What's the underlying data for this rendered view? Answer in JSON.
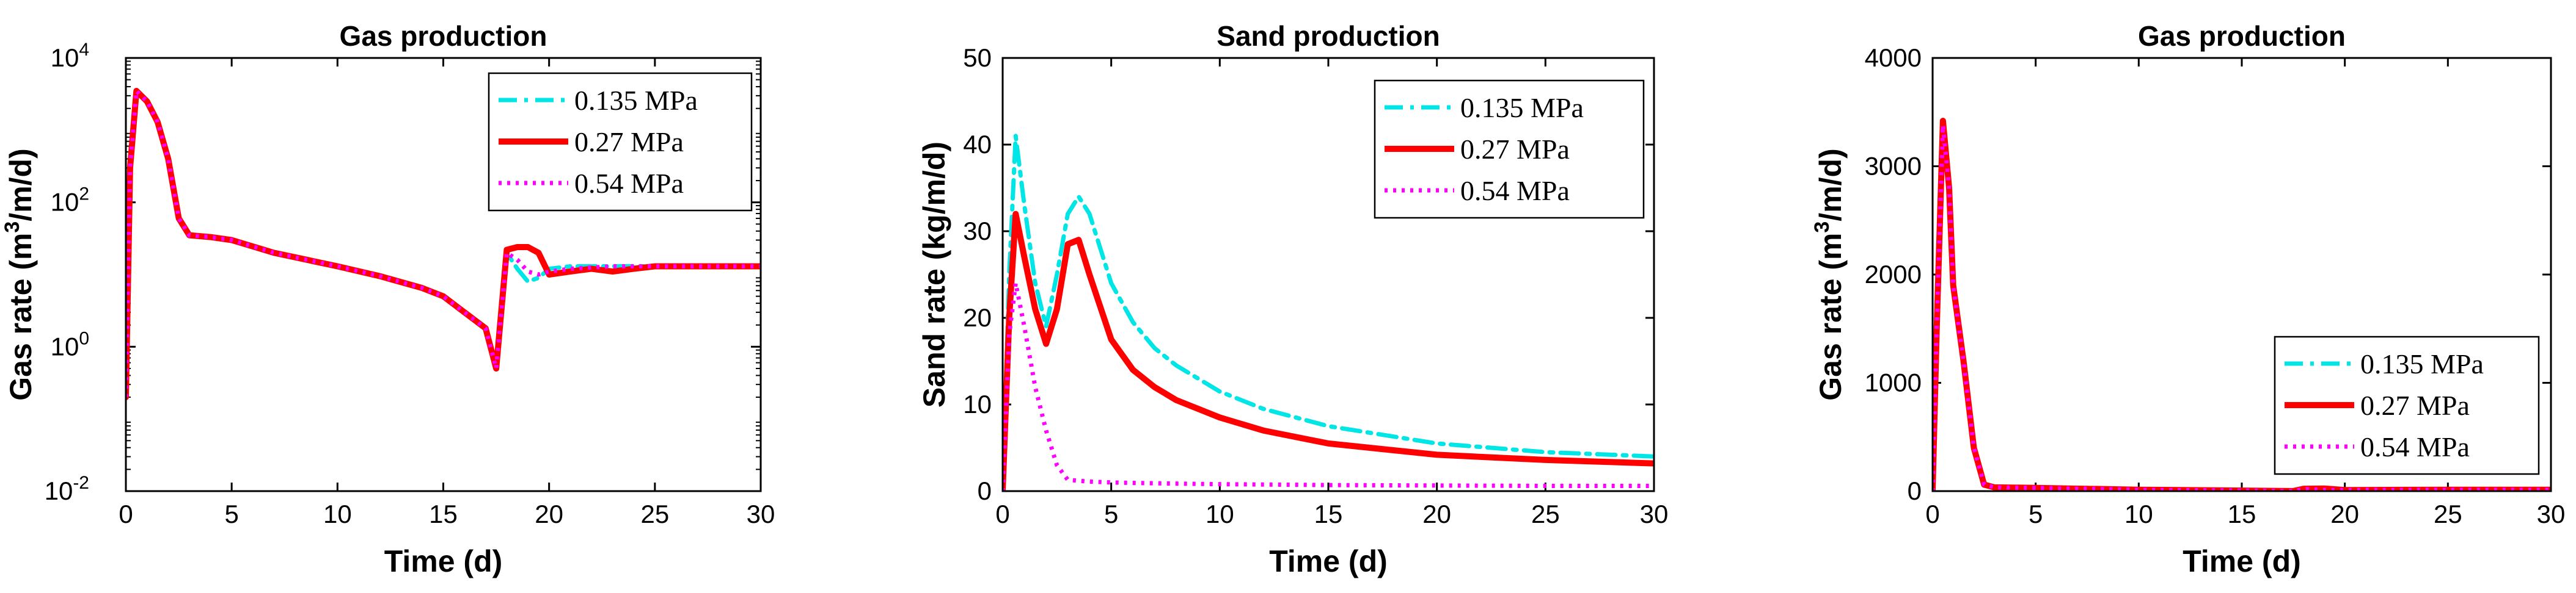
{
  "chart_data": [
    {
      "type": "line",
      "title": "Gas production",
      "xlabel": "Time (d)",
      "ylabel": "Gas rate (m³/m/d)",
      "yscale": "log",
      "xlim": [
        0,
        30
      ],
      "ylim": [
        0.01,
        10000
      ],
      "xticks": [
        "0",
        "5",
        "10",
        "15",
        "20",
        "25",
        "30"
      ],
      "yticks": [
        {
          "value": 0.01,
          "base": "10",
          "exp": "-2"
        },
        {
          "value": 1,
          "base": "10",
          "exp": "0"
        },
        {
          "value": 100,
          "base": "10",
          "exp": "2"
        },
        {
          "value": 10000,
          "base": "10",
          "exp": "4"
        }
      ],
      "legend": "top-right",
      "series": [
        {
          "name": "0.135 MPa",
          "color": "#00e5e5",
          "dash": "dashdot",
          "x": [
            0,
            0.2,
            0.5,
            1,
            1.5,
            2,
            2.5,
            3,
            4,
            5,
            7,
            10,
            12,
            14,
            15,
            16,
            17,
            17.5,
            18,
            18.5,
            19,
            19.5,
            20,
            21,
            22,
            23,
            24,
            25,
            27,
            30
          ],
          "y": [
            0.2,
            300,
            3500,
            2500,
            1300,
            400,
            60,
            35,
            33,
            30,
            20,
            13,
            9.5,
            6.5,
            5,
            3,
            1.8,
            0.5,
            20,
            12,
            8,
            9,
            12,
            13,
            13,
            13,
            13,
            13,
            13,
            13
          ]
        },
        {
          "name": "0.27 MPa",
          "color": "#ff0000",
          "dash": "solid",
          "x": [
            0,
            0.2,
            0.5,
            1,
            1.5,
            2,
            2.5,
            3,
            4,
            5,
            7,
            10,
            12,
            14,
            15,
            16,
            17,
            17.5,
            18,
            18.5,
            19,
            19.5,
            20,
            21,
            22,
            23,
            24,
            25,
            27,
            30
          ],
          "y": [
            0.2,
            300,
            3500,
            2500,
            1300,
            400,
            60,
            35,
            33,
            30,
            20,
            13,
            9.5,
            6.5,
            5,
            3,
            1.8,
            0.5,
            22,
            24,
            24,
            20,
            10,
            11,
            12,
            11,
            12,
            13,
            13,
            13
          ]
        },
        {
          "name": "0.54 MPa",
          "color": "#ff00ff",
          "dash": "dotted",
          "x": [
            0,
            0.2,
            0.5,
            1,
            1.5,
            2,
            2.5,
            3,
            4,
            5,
            7,
            10,
            12,
            14,
            15,
            16,
            17,
            17.5,
            18,
            18.5,
            19,
            19.5,
            20,
            21,
            22,
            23,
            24,
            25,
            27,
            30
          ],
          "y": [
            0.2,
            300,
            3500,
            2500,
            1300,
            400,
            60,
            35,
            33,
            30,
            20,
            13,
            9.5,
            6.5,
            5,
            3,
            1.8,
            0.5,
            20,
            16,
            11,
            10,
            11,
            12,
            12.5,
            13,
            13,
            13,
            13,
            13
          ]
        }
      ]
    },
    {
      "type": "line",
      "title": "Sand production",
      "xlabel": "Time (d)",
      "ylabel": "Sand rate (kg/m/d)",
      "yscale": "linear",
      "xlim": [
        0,
        30
      ],
      "ylim": [
        0,
        50
      ],
      "xticks": [
        "0",
        "5",
        "10",
        "15",
        "20",
        "25",
        "30"
      ],
      "yticks": [
        "0",
        "10",
        "20",
        "30",
        "40",
        "50"
      ],
      "legend": "top-right",
      "series": [
        {
          "name": "0.135 MPa",
          "color": "#00e5e5",
          "dash": "dashdot",
          "x": [
            0,
            0.3,
            0.6,
            1,
            1.5,
            2,
            2.5,
            3,
            3.5,
            4,
            5,
            6,
            7,
            8,
            10,
            12,
            15,
            20,
            25,
            30
          ],
          "y": [
            0,
            25,
            41,
            33,
            24,
            19,
            25,
            32,
            34,
            32,
            24,
            19.5,
            16.5,
            14.5,
            11.5,
            9.5,
            7.5,
            5.5,
            4.5,
            4
          ]
        },
        {
          "name": "0.27 MPa",
          "color": "#ff0000",
          "dash": "solid",
          "x": [
            0,
            0.3,
            0.6,
            1,
            1.5,
            2,
            2.5,
            3,
            3.5,
            4,
            5,
            6,
            7,
            8,
            10,
            12,
            15,
            20,
            25,
            30
          ],
          "y": [
            0,
            20,
            32,
            27,
            21,
            17,
            21,
            28.5,
            29,
            25,
            17.5,
            14,
            12,
            10.5,
            8.5,
            7,
            5.5,
            4.2,
            3.6,
            3.2
          ]
        },
        {
          "name": "0.54 MPa",
          "color": "#ff00ff",
          "dash": "dotted",
          "x": [
            0,
            0.3,
            0.6,
            1,
            1.5,
            2,
            2.5,
            3,
            3.5,
            4,
            5,
            7,
            10,
            15,
            20,
            25,
            30
          ],
          "y": [
            0,
            18,
            24,
            19,
            12,
            7,
            3,
            1.3,
            1.2,
            1.1,
            1,
            0.9,
            0.8,
            0.7,
            0.65,
            0.6,
            0.6
          ]
        }
      ]
    },
    {
      "type": "line",
      "title": "Gas production",
      "xlabel": "Time (d)",
      "ylabel": "Gas rate (m³/m/d)",
      "yscale": "linear",
      "xlim": [
        0,
        30
      ],
      "ylim": [
        0,
        4000
      ],
      "xticks": [
        "0",
        "5",
        "10",
        "15",
        "20",
        "25",
        "30"
      ],
      "yticks": [
        "0",
        "1000",
        "2000",
        "3000",
        "4000"
      ],
      "legend": "bottom-right",
      "series": [
        {
          "name": "0.135 MPa",
          "color": "#00e5e5",
          "dash": "dashdot",
          "x": [
            0,
            0.2,
            0.5,
            0.8,
            1,
            1.5,
            2,
            2.5,
            3,
            5,
            10,
            15,
            17.5,
            18,
            19,
            20,
            25,
            30
          ],
          "y": [
            0,
            1500,
            3400,
            2800,
            1900,
            1200,
            400,
            60,
            35,
            30,
            13,
            5,
            0.5,
            20,
            10,
            12,
            13,
            13
          ]
        },
        {
          "name": "0.27 MPa",
          "color": "#ff0000",
          "dash": "solid",
          "x": [
            0,
            0.2,
            0.5,
            0.8,
            1,
            1.5,
            2,
            2.5,
            3,
            5,
            10,
            15,
            17.5,
            18,
            19,
            20,
            25,
            30
          ],
          "y": [
            0,
            1500,
            3420,
            2800,
            1900,
            1200,
            400,
            60,
            35,
            30,
            13,
            5,
            0.5,
            22,
            24,
            10,
            13,
            13
          ]
        },
        {
          "name": "0.54 MPa",
          "color": "#ff00ff",
          "dash": "dotted",
          "x": [
            0,
            0.2,
            0.5,
            0.8,
            1,
            1.5,
            2,
            2.5,
            3,
            5,
            10,
            15,
            17.5,
            18,
            19,
            20,
            25,
            30
          ],
          "y": [
            0,
            1500,
            3380,
            2800,
            1900,
            1200,
            400,
            60,
            35,
            30,
            13,
            5,
            0.5,
            20,
            11,
            11,
            13,
            13
          ]
        }
      ]
    }
  ]
}
